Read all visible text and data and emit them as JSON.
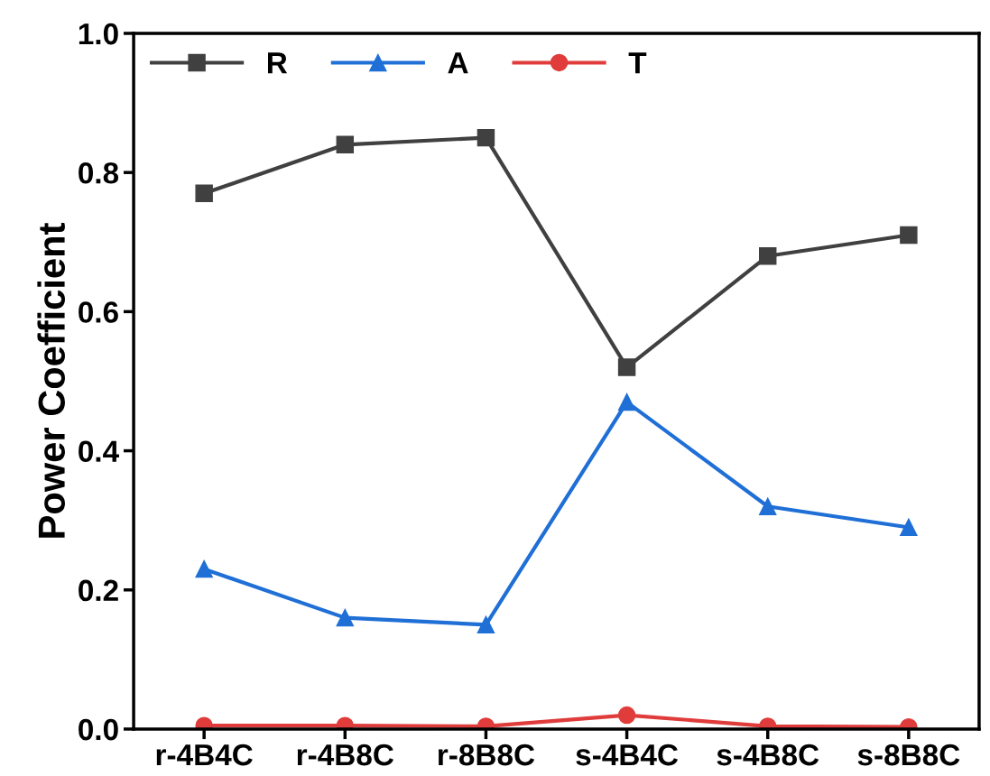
{
  "chart_data": {
    "type": "line",
    "ylabel": "Power Coefficient",
    "categories": [
      "r-4B4C",
      "r-4B8C",
      "r-8B8C",
      "s-4B4C",
      "s-4B8C",
      "s-8B8C"
    ],
    "series": [
      {
        "name": "R",
        "color": "#404040",
        "marker": "square",
        "values": [
          0.77,
          0.84,
          0.85,
          0.52,
          0.68,
          0.71
        ]
      },
      {
        "name": "A",
        "color": "#1f6fd6",
        "marker": "triangle",
        "values": [
          0.23,
          0.16,
          0.15,
          0.47,
          0.32,
          0.29
        ]
      },
      {
        "name": "T",
        "color": "#e03c3c",
        "marker": "circle",
        "values": [
          0.005,
          0.005,
          0.004,
          0.02,
          0.004,
          0.003
        ]
      }
    ],
    "ylim": [
      0,
      1
    ],
    "yticks": [
      {
        "value": 0,
        "label": "0.0"
      },
      0.2,
      0.4,
      0.6,
      0.8,
      {
        "value": 1,
        "label": "1.0"
      }
    ],
    "grid": false,
    "legend": "top left",
    "line_style": "solid"
  }
}
